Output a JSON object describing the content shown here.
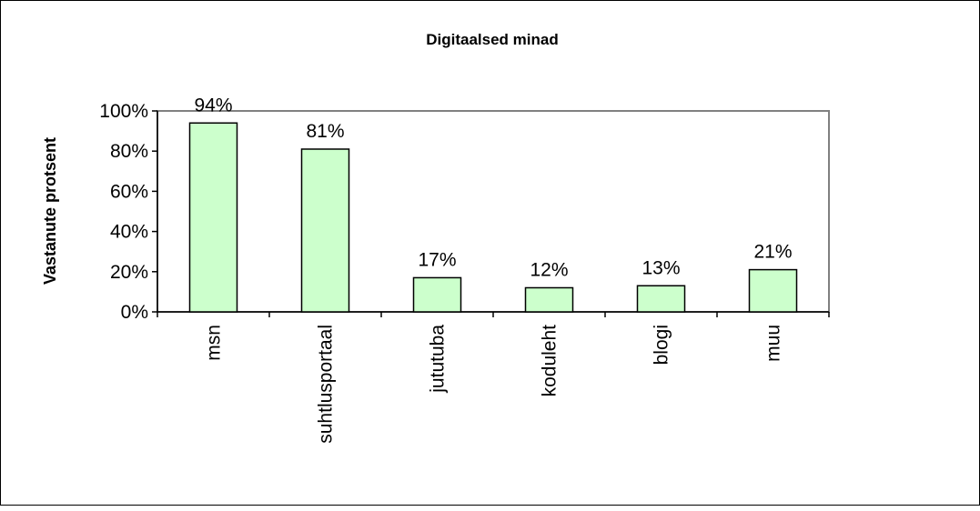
{
  "chart_data": {
    "type": "bar",
    "title": "Digitaalsed minad",
    "ylabel": "Vastanute protsent",
    "xlabel": "",
    "categories": [
      "msn",
      "suhtlusportaal",
      "jututuba",
      "koduleht",
      "blogi",
      "muu"
    ],
    "values": [
      94,
      81,
      17,
      12,
      13,
      21
    ],
    "value_labels": [
      "94%",
      "81%",
      "17%",
      "12%",
      "13%",
      "21%"
    ],
    "ylim": [
      0,
      100
    ],
    "yticks": [
      "0%",
      "20%",
      "40%",
      "60%",
      "80%",
      "100%"
    ],
    "bar_color": "#ccffcc",
    "bar_edge_color": "#000000",
    "grid": false,
    "legend": "none"
  }
}
